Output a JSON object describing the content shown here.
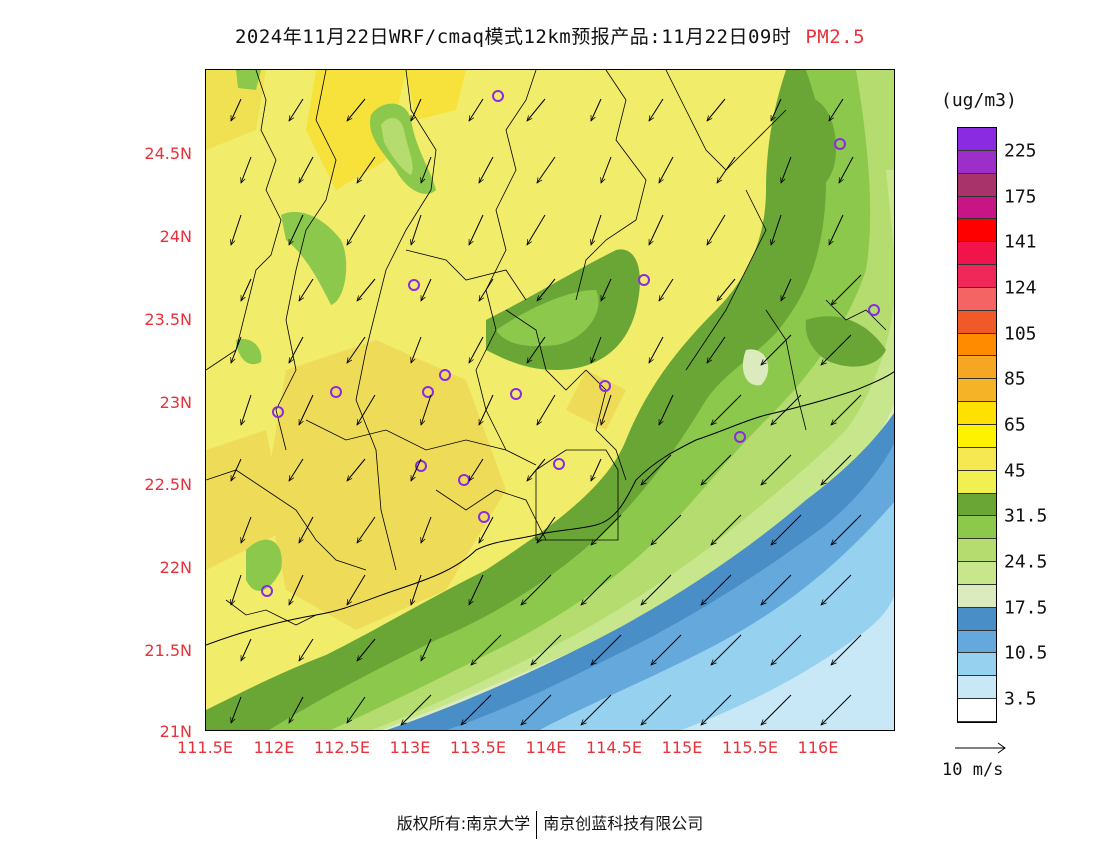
{
  "title": {
    "text": "2024年11月22日WRF/cmaq模式12km预报产品:11月22日09时",
    "pollutant": "PM2.5"
  },
  "map": {
    "lat_labels": [
      "24.5N",
      "24N",
      "23.5N",
      "23N",
      "22.5N",
      "22N",
      "21.5N",
      "21N"
    ],
    "lon_labels": [
      "111.5E",
      "112E",
      "112.5E",
      "113E",
      "113.5E",
      "114E",
      "114.5E",
      "115E",
      "115.5E",
      "116E"
    ]
  },
  "legend": {
    "units": "(ug/m3)",
    "tick_labels": [
      "225",
      "175",
      "141",
      "124",
      "105",
      "85",
      "65",
      "45",
      "31.5",
      "24.5",
      "17.5",
      "10.5",
      "3.5"
    ],
    "colors": [
      "#8a2be2",
      "#9b2fc8",
      "#a8326a",
      "#c71585",
      "#ff0000",
      "#f0144b",
      "#f0285a",
      "#f56464",
      "#f05a28",
      "#ff8c00",
      "#f5a623",
      "#f5b428",
      "#ffe000",
      "#fff200",
      "#f5e850",
      "#f0f050",
      "#6aa636",
      "#8cc84b",
      "#b4dc6e",
      "#c8e68c",
      "#dcebbe",
      "#4a8ec8",
      "#64a8dc",
      "#96d2f0",
      "#c8e8f8",
      "#ffffff"
    ]
  },
  "wind_scale": {
    "label": "10 m/s"
  },
  "footer": {
    "left": "版权所有:南京大学",
    "right": "南京创蓝科技有限公司"
  }
}
